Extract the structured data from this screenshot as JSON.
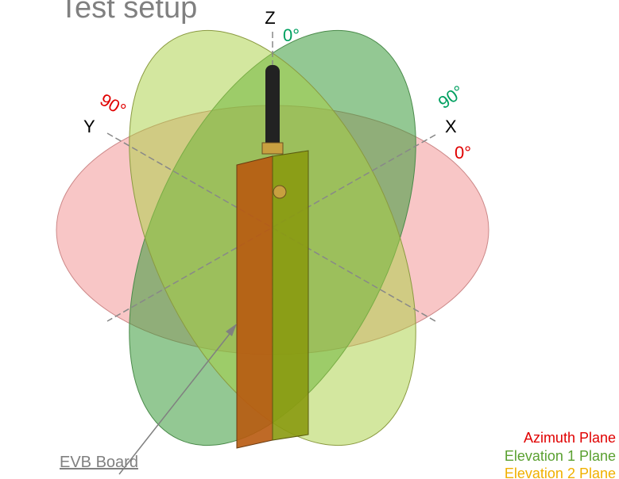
{
  "title": "Test setup",
  "axes": {
    "z": "Z",
    "x": "X",
    "y": "Y"
  },
  "angles": {
    "z_zero": "0°",
    "x_ninety": "90°",
    "x_zero": "0°",
    "y_ninety": "90°"
  },
  "legend": [
    "Azimuth Plane",
    "Elevation 1 Plane",
    "Elevation 2 Plane"
  ],
  "callout": "EVB Board"
}
